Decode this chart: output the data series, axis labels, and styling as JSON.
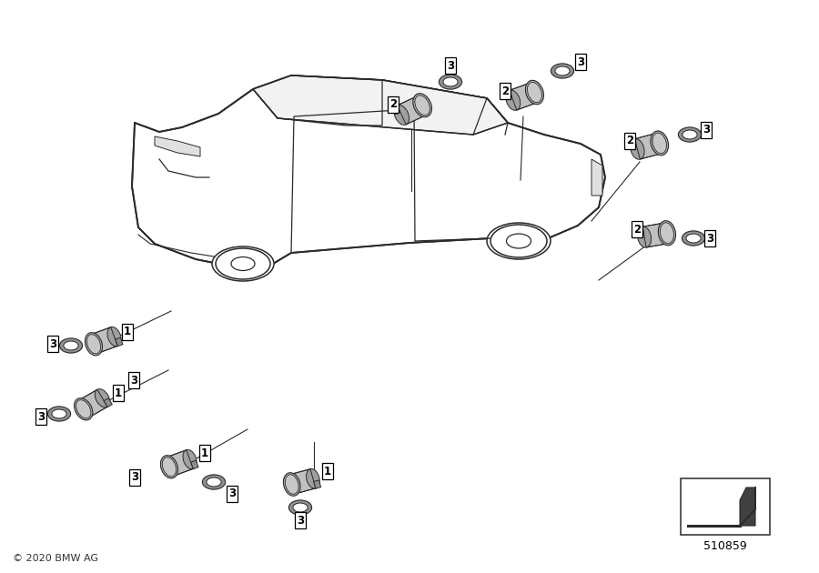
{
  "background_color": "#ffffff",
  "line_color": "#2a2a2a",
  "sensor_color": "#b8b8b8",
  "sensor_dark": "#8a8a8a",
  "ring_color": "#909090",
  "copyright": "© 2020 BMW AG",
  "part_number": "510859"
}
